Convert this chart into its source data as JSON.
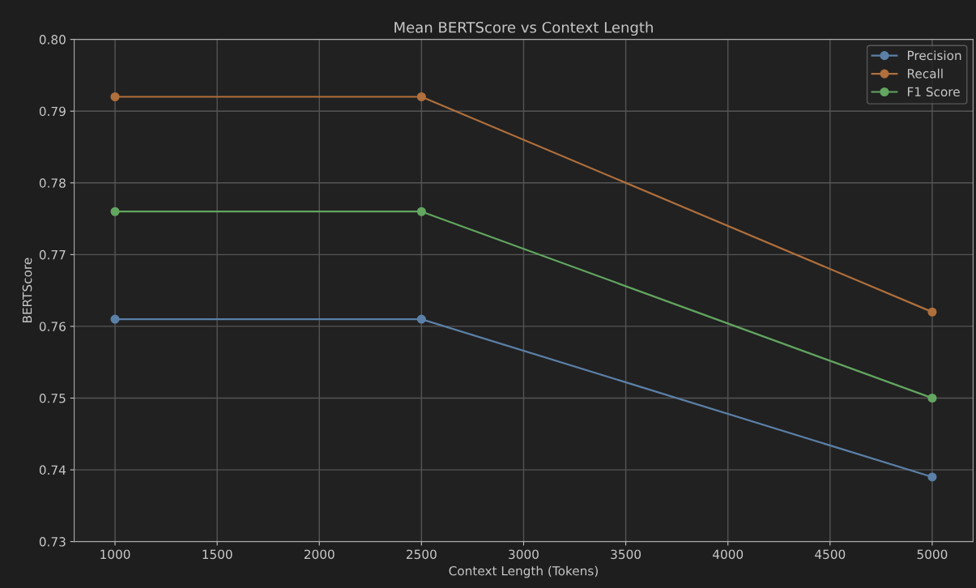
{
  "chart_data": {
    "type": "line",
    "title": "Mean BERTScore vs Context Length",
    "xlabel": "Context Length (Tokens)",
    "ylabel": "BERTScore",
    "x": [
      1000,
      2500,
      5000
    ],
    "series": [
      {
        "name": "Precision",
        "color": "#5b80a8",
        "values": [
          0.761,
          0.761,
          0.739
        ]
      },
      {
        "name": "Recall",
        "color": "#b06f3c",
        "values": [
          0.792,
          0.792,
          0.762
        ]
      },
      {
        "name": "F1 Score",
        "color": "#62a660",
        "values": [
          0.776,
          0.776,
          0.75
        ]
      }
    ],
    "xlim": [
      800,
      5200
    ],
    "xticks": [
      1000,
      1500,
      2000,
      2500,
      3000,
      3500,
      4000,
      4500,
      5000
    ],
    "ylim": [
      0.73,
      0.8
    ],
    "yticks": [
      {
        "value": 0.73,
        "label": "0.73"
      },
      {
        "value": 0.74,
        "label": "0.74"
      },
      {
        "value": 0.75,
        "label": "0.75"
      },
      {
        "value": 0.76,
        "label": "0.76"
      },
      {
        "value": 0.77,
        "label": "0.77"
      },
      {
        "value": 0.78,
        "label": "0.78"
      },
      {
        "value": 0.79,
        "label": "0.79"
      },
      {
        "value": 0.8,
        "label": "0.80"
      }
    ],
    "grid": true,
    "legend": "top right",
    "marker": "circle",
    "line_style": "solid"
  }
}
